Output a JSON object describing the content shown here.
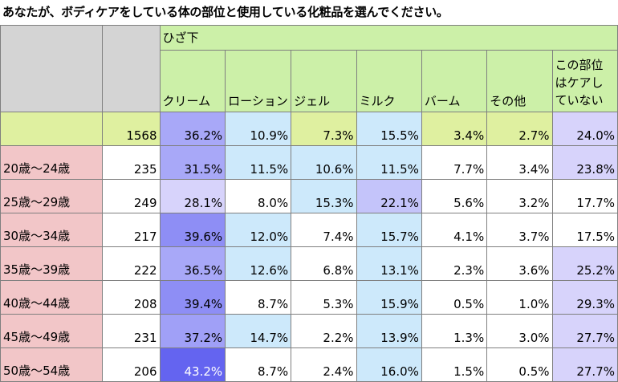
{
  "title": "あなたが、ボディケアをしている体の部位と使用している化粧品を選んでください。",
  "chart_data": {
    "type": "table",
    "group_header": "ひざ下",
    "columns": [
      "クリーム",
      "ローション",
      "ジェル",
      "ミルク",
      "バーム",
      "その他",
      "この部位はケアしていない"
    ],
    "total": {
      "label": "",
      "n": "1568",
      "values": [
        "36.2%",
        "10.9%",
        "7.3%",
        "15.5%",
        "3.4%",
        "2.7%",
        "24.0%"
      ]
    },
    "rows": [
      {
        "label": "20歳〜24歳",
        "n": "235",
        "values": [
          "31.5%",
          "11.5%",
          "10.6%",
          "11.5%",
          "7.7%",
          "3.4%",
          "23.8%"
        ]
      },
      {
        "label": "25歳〜29歳",
        "n": "249",
        "values": [
          "28.1%",
          "8.0%",
          "15.3%",
          "22.1%",
          "5.6%",
          "3.2%",
          "17.7%"
        ]
      },
      {
        "label": "30歳〜34歳",
        "n": "217",
        "values": [
          "39.6%",
          "12.0%",
          "7.4%",
          "15.7%",
          "4.1%",
          "3.7%",
          "17.5%"
        ]
      },
      {
        "label": "35歳〜39歳",
        "n": "222",
        "values": [
          "36.5%",
          "12.6%",
          "6.8%",
          "13.1%",
          "2.3%",
          "3.6%",
          "25.2%"
        ]
      },
      {
        "label": "40歳〜44歳",
        "n": "208",
        "values": [
          "39.4%",
          "8.7%",
          "5.3%",
          "15.9%",
          "0.5%",
          "1.0%",
          "29.3%"
        ]
      },
      {
        "label": "45歳〜49歳",
        "n": "231",
        "values": [
          "37.2%",
          "14.7%",
          "2.2%",
          "13.9%",
          "1.3%",
          "3.0%",
          "27.7%"
        ]
      },
      {
        "label": "50歳〜54歳",
        "n": "206",
        "values": [
          "43.2%",
          "8.7%",
          "2.4%",
          "16.0%",
          "1.5%",
          "0.5%",
          "27.7%"
        ]
      }
    ],
    "cell_colors": {
      "total": [
        "#a8a8f8",
        "#cde9fb",
        "#dff0a0",
        "#cde9fb",
        "#dff0a0",
        "#dff0a0",
        "#d7d3fb"
      ],
      "rows": [
        [
          "#a8a8f8",
          "#cde9fb",
          "#cde9fb",
          "#cde9fb",
          "#ffffff",
          "#ffffff",
          "#d7d3fb"
        ],
        [
          "#d7d3fb",
          "#ffffff",
          "#cde9fb",
          "#c4c4fa",
          "#ffffff",
          "#ffffff",
          "#ffffff"
        ],
        [
          "#8e8ef5",
          "#cde9fb",
          "#ffffff",
          "#cde9fb",
          "#ffffff",
          "#ffffff",
          "#ffffff"
        ],
        [
          "#a8a8f8",
          "#cde9fb",
          "#ffffff",
          "#cde9fb",
          "#ffffff",
          "#ffffff",
          "#d7d3fb"
        ],
        [
          "#8e8ef5",
          "#ffffff",
          "#ffffff",
          "#cde9fb",
          "#ffffff",
          "#ffffff",
          "#d7d3fb"
        ],
        [
          "#a0a0f7",
          "#cde9fb",
          "#ffffff",
          "#cde9fb",
          "#ffffff",
          "#ffffff",
          "#d7d3fb"
        ],
        [
          "#6464f0",
          "#ffffff",
          "#ffffff",
          "#cde9fb",
          "#ffffff",
          "#ffffff",
          "#d7d3fb"
        ]
      ]
    },
    "colors": {
      "header_green": "#ccf0a8",
      "total_green": "#dff0a0",
      "age_pink": "#f2c6c8",
      "corner_gray": "#d4d4d4",
      "dark_cell_text": "#ffffff"
    }
  }
}
